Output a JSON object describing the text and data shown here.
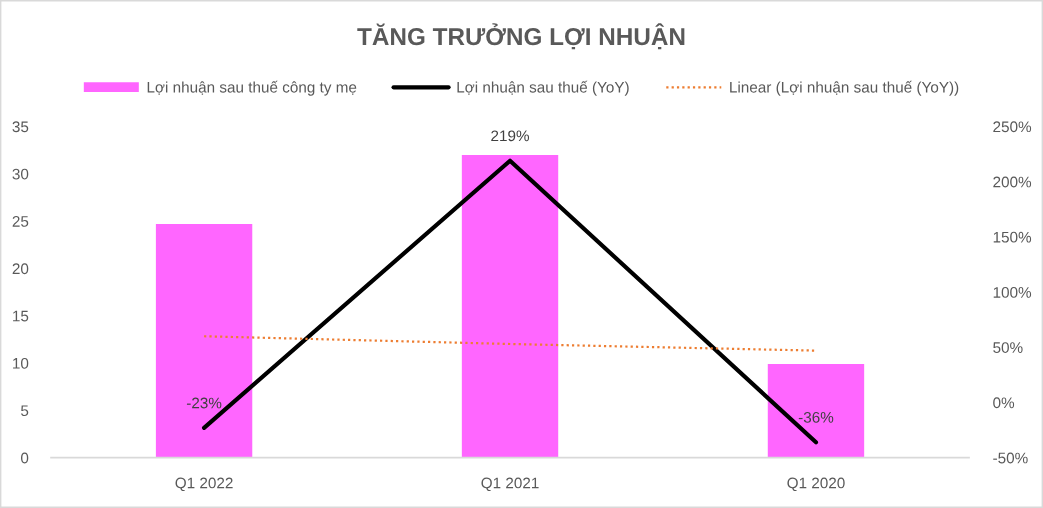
{
  "chart_data": {
    "type": "bar",
    "title": "TĂNG TRƯỞNG LỢI NHUẬN",
    "categories": [
      "Q1 2022",
      "Q1 2021",
      "Q1 2020"
    ],
    "series": [
      {
        "name": "Lợi nhuận sau thuế công ty mẹ",
        "color": "#ff66ff",
        "values": [
          24.7,
          32.0,
          9.9
        ]
      },
      {
        "name": "Lợi nhuận sau thuế (YoY)",
        "type": "line",
        "axis": "y2",
        "color": "#000000",
        "line_style": "solid",
        "values": [
          -23,
          219,
          -36
        ],
        "value_labels": [
          "-23%",
          "219%",
          "-36%"
        ]
      },
      {
        "name": "Linear (Lợi nhuận sau thuế (YoY))",
        "type": "line",
        "axis": "y2",
        "color": "#ed7d31",
        "line_style": "dotted",
        "values": [
          60,
          53,
          47
        ]
      }
    ],
    "ylim": [
      0,
      35
    ],
    "yticks": [
      0,
      5,
      10,
      15,
      20,
      25,
      30,
      35
    ],
    "y2lim": [
      -50,
      250
    ],
    "y2ticks": [
      {
        "value": -50,
        "label": "-50%"
      },
      {
        "value": 0,
        "label": "0%"
      },
      {
        "value": 50,
        "label": "50%"
      },
      {
        "value": 100,
        "label": "100%"
      },
      {
        "value": 150,
        "label": "150%"
      },
      {
        "value": 200,
        "label": "200%"
      },
      {
        "value": 250,
        "label": "250%"
      }
    ],
    "grid": false,
    "legend": "top",
    "marker": "none"
  }
}
